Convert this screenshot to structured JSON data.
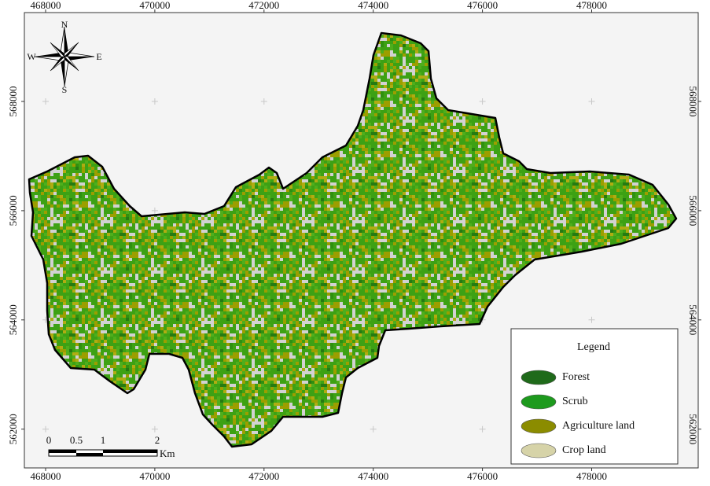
{
  "map": {
    "x_ticks": [
      468000,
      470000,
      472000,
      474000,
      476000,
      478000
    ],
    "y_ticks": [
      568000,
      566000,
      564000,
      562000
    ],
    "compass": {
      "n": "N",
      "s": "S",
      "e": "E",
      "w": "W"
    },
    "scale_bar": {
      "labels": [
        "0",
        "0.5",
        "1",
        "2"
      ],
      "unit": "Km"
    },
    "legend": {
      "title": "Legend",
      "items": [
        {
          "label": "Forest",
          "color": "#1f6a1a"
        },
        {
          "label": "Scrub",
          "color": "#1d9a1d"
        },
        {
          "label": "Agriculture land",
          "color": "#8b8c00"
        },
        {
          "label": "Crop land",
          "color": "#d6d3a8"
        }
      ]
    }
  }
}
